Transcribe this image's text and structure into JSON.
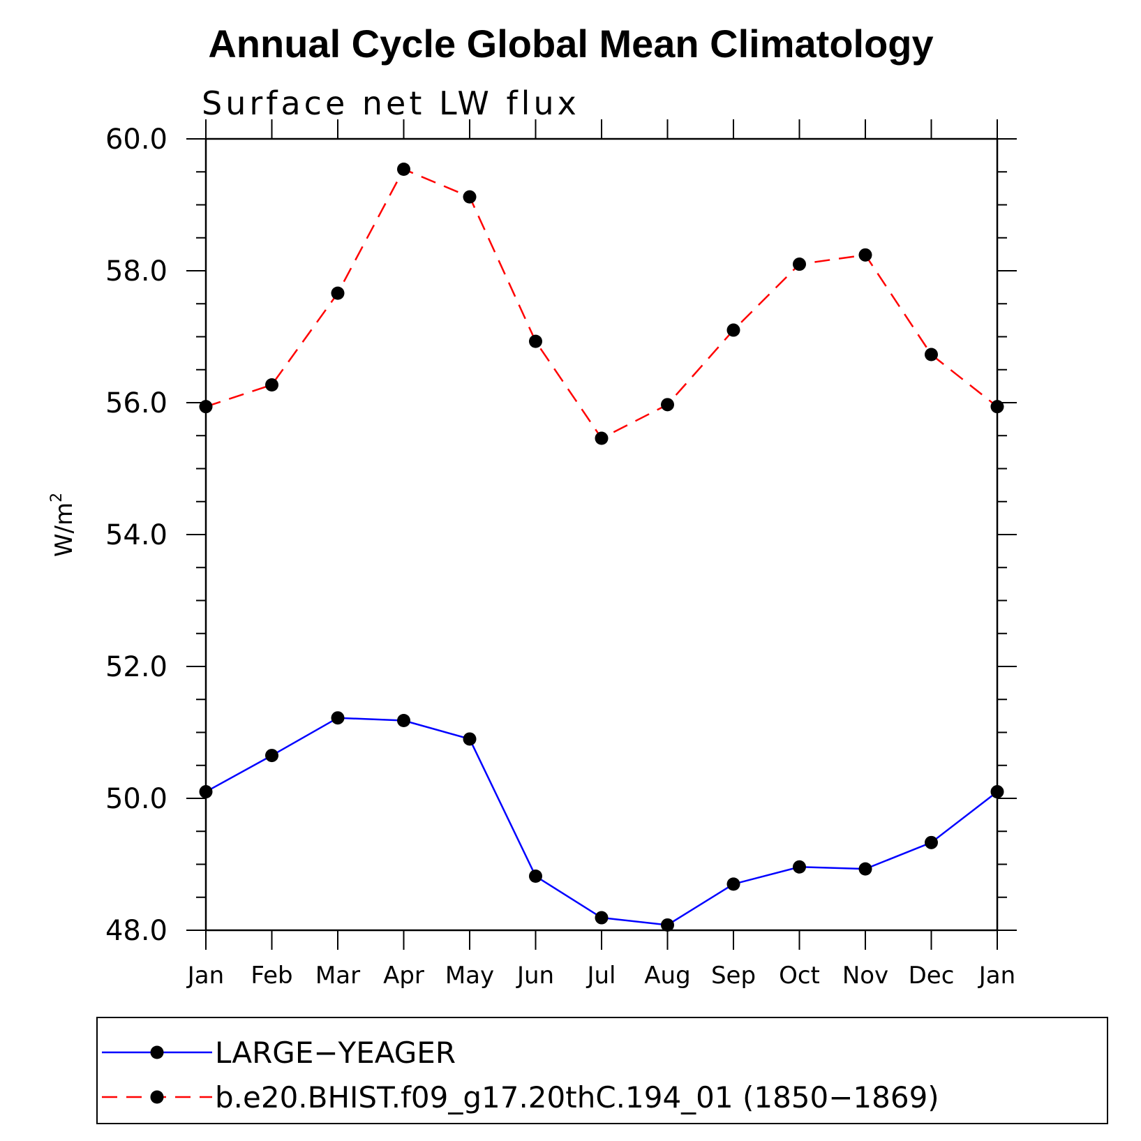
{
  "chart_data": {
    "type": "line",
    "title": "Annual Cycle Global Mean Climatology",
    "subtitle": "Surface net LW flux",
    "ylabel": "W/m",
    "ylabel_sup": "2",
    "xlabel": "",
    "ylim": [
      48.0,
      60.0
    ],
    "yticks": [
      "60.0",
      "58.0",
      "56.0",
      "54.0",
      "52.0",
      "50.0",
      "48.0"
    ],
    "ytick_values": [
      60,
      58,
      56,
      54,
      52,
      50,
      48
    ],
    "categories": [
      "Jan",
      "Feb",
      "Mar",
      "Apr",
      "May",
      "Jun",
      "Jul",
      "Aug",
      "Sep",
      "Oct",
      "Nov",
      "Dec",
      "Jan"
    ],
    "series": [
      {
        "name": "LARGE−YEAGER",
        "color": "#0000ff",
        "style": "solid",
        "values": [
          50.1,
          50.65,
          51.22,
          51.18,
          50.9,
          48.82,
          48.19,
          48.08,
          48.7,
          48.96,
          48.93,
          49.33,
          50.1
        ]
      },
      {
        "name": "b.e20.BHIST.f09_g17.20thC.194_01 (1850−1869)",
        "color": "#ff0000",
        "style": "dashed",
        "values": [
          55.94,
          56.27,
          57.66,
          59.54,
          59.12,
          56.93,
          55.46,
          55.97,
          57.1,
          58.1,
          58.24,
          56.73,
          55.94
        ]
      }
    ],
    "grid": false,
    "legend_placement": "bottom"
  }
}
